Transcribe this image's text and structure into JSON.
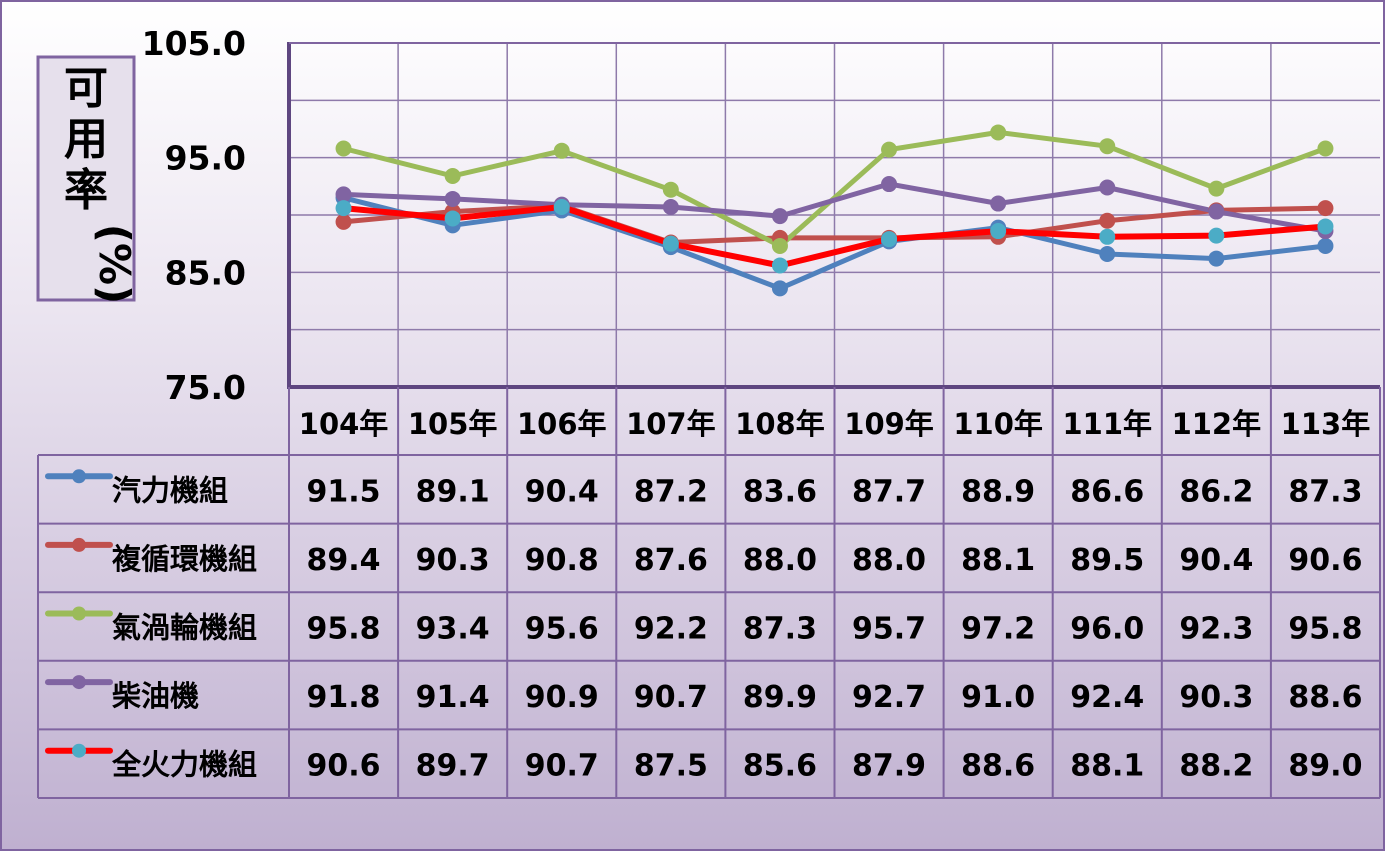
{
  "chart_data": {
    "type": "line",
    "ylabel": "可用率(%)",
    "ylim": [
      75,
      105
    ],
    "y_ticks": [
      "105.0",
      "95.0",
      "85.0",
      "75.0"
    ],
    "y_tick_values": [
      105,
      95,
      85,
      75
    ],
    "grid": true,
    "legend_placement": "data-table-rows",
    "categories": [
      "104年",
      "105年",
      "106年",
      "107年",
      "108年",
      "109年",
      "110年",
      "111年",
      "112年",
      "113年"
    ],
    "series": [
      {
        "name": "汽力機組",
        "color": "#4F81BD",
        "marker": "#4F81BD",
        "values": [
          91.5,
          89.1,
          90.4,
          87.2,
          83.6,
          87.7,
          88.9,
          86.6,
          86.2,
          87.3
        ],
        "labels": [
          "91.5",
          "89.1",
          "90.4",
          "87.2",
          "83.6",
          "87.7",
          "88.9",
          "86.6",
          "86.2",
          "87.3"
        ]
      },
      {
        "name": "複循環機組",
        "color": "#C0504D",
        "marker": "#C0504D",
        "values": [
          89.4,
          90.3,
          90.8,
          87.6,
          88.0,
          88.0,
          88.1,
          89.5,
          90.4,
          90.6
        ],
        "labels": [
          "89.4",
          "90.3",
          "90.8",
          "87.6",
          "88.0",
          "88.0",
          "88.1",
          "89.5",
          "90.4",
          "90.6"
        ]
      },
      {
        "name": "氣渦輪機組",
        "color": "#9BBB59",
        "marker": "#9BBB59",
        "values": [
          95.8,
          93.4,
          95.6,
          92.2,
          87.3,
          95.7,
          97.2,
          96.0,
          92.3,
          95.8
        ],
        "labels": [
          "95.8",
          "93.4",
          "95.6",
          "92.2",
          "87.3",
          "95.7",
          "97.2",
          "96.0",
          "92.3",
          "95.8"
        ]
      },
      {
        "name": "柴油機",
        "color": "#8064A2",
        "marker": "#8064A2",
        "values": [
          91.8,
          91.4,
          90.9,
          90.7,
          89.9,
          92.7,
          91.0,
          92.4,
          90.3,
          88.6
        ],
        "labels": [
          "91.8",
          "91.4",
          "90.9",
          "90.7",
          "89.9",
          "92.7",
          "91.0",
          "92.4",
          "90.3",
          "88.6"
        ]
      },
      {
        "name": "全火力機組",
        "color": "#FF0000",
        "marker": "#4BACC6",
        "values": [
          90.6,
          89.7,
          90.7,
          87.5,
          85.6,
          87.9,
          88.6,
          88.1,
          88.2,
          89.0
        ],
        "labels": [
          "90.6",
          "89.7",
          "90.7",
          "87.5",
          "85.6",
          "87.9",
          "88.6",
          "88.1",
          "88.2",
          "89.0"
        ]
      }
    ]
  }
}
